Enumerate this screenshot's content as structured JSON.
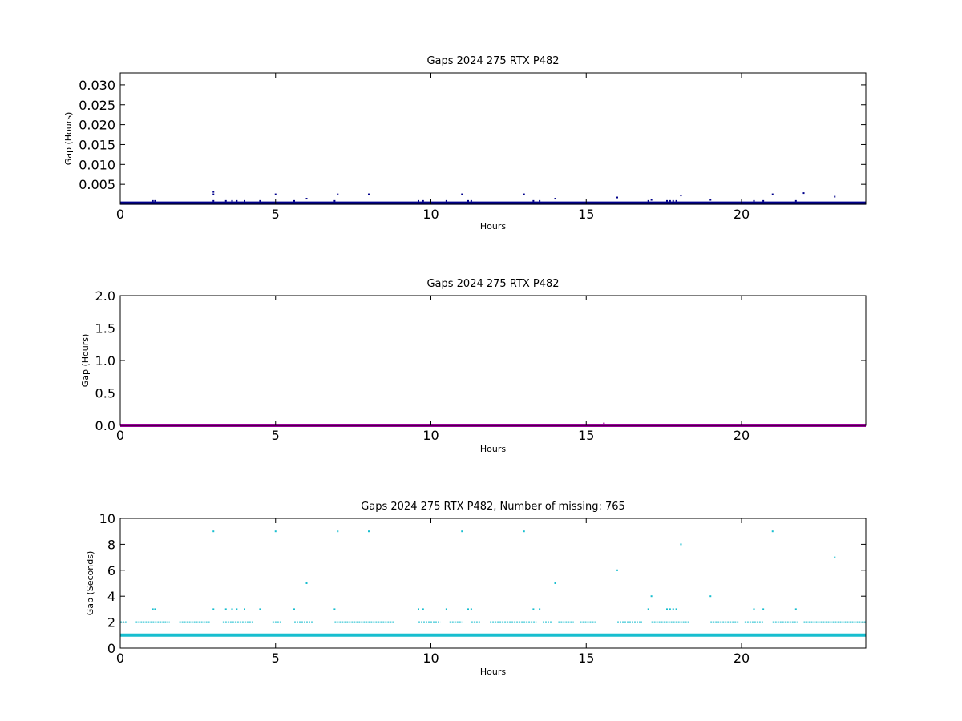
{
  "chart_data": [
    {
      "type": "scatter",
      "title": "Gaps 2024 275 RTX  P482",
      "xlabel": "Hours",
      "ylabel": "Gap (Hours)",
      "xlim": [
        0,
        24
      ],
      "ylim": [
        0,
        0.033
      ],
      "xticks": [
        0,
        5,
        10,
        15,
        20
      ],
      "yticks": [
        0.005,
        0.01,
        0.015,
        0.02,
        0.025,
        0.03
      ],
      "ytick_labels": [
        "0.005",
        "0.010",
        "0.015",
        "0.020",
        "0.025",
        "0.030"
      ],
      "color": "#00008b",
      "baseline": {
        "x": [
          0,
          24
        ],
        "y": 0.00028
      },
      "series": [
        {
          "x": [
            1.05,
            1.12,
            3.0,
            3.0,
            3.0,
            3.4,
            3.6,
            3.75,
            4.0,
            4.5,
            5.0,
            5.6,
            6.0,
            6.9,
            7.0,
            8.0,
            9.6,
            9.75,
            10.5,
            11.0,
            11.2,
            11.3,
            13.0,
            13.3,
            13.5,
            14.0,
            16.0,
            17.0,
            17.1,
            17.6,
            17.7,
            17.8,
            17.9,
            18.05,
            19.0,
            20.4,
            20.7,
            21.0,
            21.75,
            22.0,
            23.0
          ],
          "y": [
            0.00083,
            0.00083,
            0.0025,
            0.0031,
            0.00083,
            0.00083,
            0.00083,
            0.00083,
            0.00083,
            0.00083,
            0.0025,
            0.00083,
            0.0014,
            0.00083,
            0.0025,
            0.0025,
            0.00083,
            0.00083,
            0.00083,
            0.0025,
            0.00083,
            0.00083,
            0.0025,
            0.00083,
            0.00083,
            0.0014,
            0.0017,
            0.00083,
            0.0011,
            0.00083,
            0.00083,
            0.00083,
            0.00083,
            0.0022,
            0.0011,
            0.00083,
            0.00083,
            0.0025,
            0.00083,
            0.0028,
            0.0019
          ]
        }
      ]
    },
    {
      "type": "scatter",
      "title": "Gaps 2024 275 RTX  P482",
      "xlabel": "Hours",
      "ylabel": "Gap (Hours)",
      "xlim": [
        0,
        24
      ],
      "ylim": [
        0,
        2.0
      ],
      "xticks": [
        0,
        5,
        10,
        15,
        20
      ],
      "yticks": [
        0.0,
        0.5,
        1.0,
        1.5,
        2.0
      ],
      "ytick_labels": [
        "0.0",
        "0.5",
        "1.0",
        "1.5",
        "2.0"
      ],
      "color": "#990099",
      "baseline": {
        "x": [
          0,
          24
        ],
        "y": 0.0003
      },
      "series": [
        {
          "x": [
            15.57
          ],
          "y": 0.03
        }
      ]
    },
    {
      "type": "scatter",
      "title": "Gaps 2024 275 RTX  P482, Number of missing: 765",
      "xlabel": "Hours",
      "ylabel": "Gap (Seconds)",
      "xlim": [
        0,
        24
      ],
      "ylim": [
        0,
        10
      ],
      "xticks": [
        0,
        5,
        10,
        15,
        20
      ],
      "yticks": [
        0,
        2,
        4,
        6,
        8,
        10
      ],
      "ytick_labels": [
        "0",
        "2",
        "4",
        "6",
        "8",
        "10"
      ],
      "color": "#17becf",
      "baseline": {
        "x": [
          0,
          24
        ],
        "y": 1
      },
      "dense_band": {
        "y": 2,
        "segments": [
          [
            0,
            0.2
          ],
          [
            0.5,
            1.6
          ],
          [
            1.9,
            2.9
          ],
          [
            3.3,
            4.3
          ],
          [
            4.9,
            5.2
          ],
          [
            5.6,
            6.2
          ],
          [
            6.9,
            8.8
          ],
          [
            9.6,
            10.3
          ],
          [
            10.6,
            11.0
          ],
          [
            11.3,
            11.6
          ],
          [
            11.9,
            13.4
          ],
          [
            13.6,
            13.9
          ],
          [
            14.1,
            14.6
          ],
          [
            14.8,
            15.3
          ],
          [
            16.0,
            16.8
          ],
          [
            17.1,
            18.3
          ],
          [
            19.0,
            19.9
          ],
          [
            20.1,
            20.7
          ],
          [
            21.0,
            21.8
          ],
          [
            22.0,
            24.0
          ]
        ]
      },
      "series": [
        {
          "x": [
            3.0,
            5.0,
            7.0,
            8.0,
            11.0,
            13.0,
            21.0,
            18.05,
            23.0,
            16.0,
            6.0,
            14.0,
            17.1,
            19.0,
            1.05,
            1.12,
            3.0,
            3.4,
            3.6,
            3.75,
            4.0,
            4.5,
            5.6,
            6.9,
            9.6,
            9.75,
            10.5,
            11.2,
            11.3,
            13.3,
            13.5,
            17.0,
            17.6,
            17.7,
            17.8,
            17.9,
            20.4,
            20.7,
            21.75
          ],
          "y": [
            9,
            9,
            9,
            9,
            9,
            9,
            9,
            8,
            7,
            6,
            5,
            5,
            4,
            4,
            3,
            3,
            3,
            3,
            3,
            3,
            3,
            3,
            3,
            3,
            3,
            3,
            3,
            3,
            3,
            3,
            3,
            3,
            3,
            3,
            3,
            3,
            3,
            3,
            3
          ]
        }
      ]
    }
  ]
}
